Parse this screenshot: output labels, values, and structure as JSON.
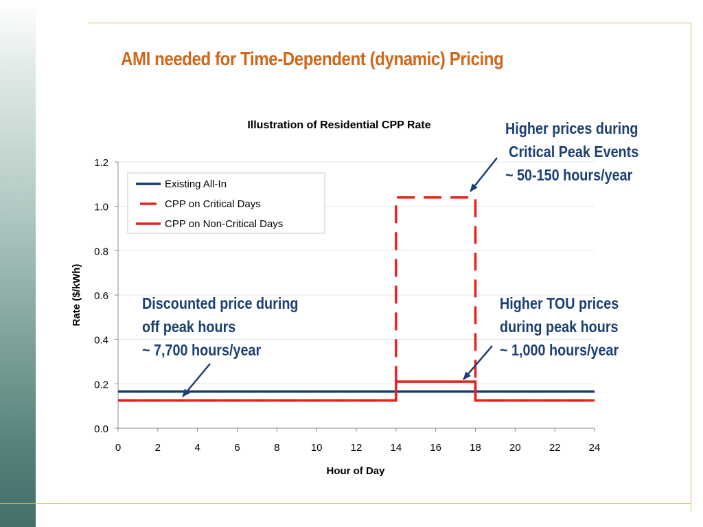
{
  "slide": {
    "title": "AMI needed for Time-Dependent (dynamic) Pricing"
  },
  "annotations": {
    "critical_peak": [
      "Higher prices during",
      "Critical Peak Events",
      "~ 50-150 hours/year"
    ],
    "discounted_off_peak": [
      "Discounted price during",
      "off peak hours",
      "~ 7,700 hours/year"
    ],
    "higher_tou": [
      "Higher TOU prices",
      "during peak hours",
      "~ 1,000 hours/year"
    ]
  },
  "chart_data": {
    "type": "line",
    "title": "Illustration of Residential CPP Rate",
    "xlabel": "Hour of Day",
    "ylabel": "Rate ($/kWh)",
    "xlim": [
      0,
      24
    ],
    "ylim": [
      0,
      1.2
    ],
    "x_ticks": [
      0,
      2,
      4,
      6,
      8,
      10,
      12,
      14,
      16,
      18,
      20,
      22,
      24
    ],
    "y_ticks": [
      "0.0",
      "0.2",
      "0.4",
      "0.6",
      "0.8",
      "1.0",
      "1.2"
    ],
    "grid": "horizontal",
    "legend_position": "top-left",
    "series": [
      {
        "name": "Existing All-In",
        "color": "#173a64",
        "style": "solid",
        "points": [
          [
            0,
            0.165
          ],
          [
            24,
            0.165
          ]
        ]
      },
      {
        "name": "CPP on Critical Days",
        "color": "#e8211d",
        "style": "dashed",
        "points": [
          [
            0,
            0.125
          ],
          [
            14,
            0.125
          ],
          [
            14,
            1.04
          ],
          [
            18,
            1.04
          ],
          [
            18,
            0.125
          ],
          [
            24,
            0.125
          ]
        ]
      },
      {
        "name": "CPP on Non-Critical Days",
        "color": "#e8211d",
        "style": "solid",
        "points": [
          [
            0,
            0.125
          ],
          [
            14,
            0.125
          ],
          [
            14,
            0.21
          ],
          [
            18,
            0.21
          ],
          [
            18,
            0.125
          ],
          [
            24,
            0.125
          ]
        ]
      }
    ]
  },
  "colors": {
    "title": "#d0661a",
    "annotation": "#1c3f73",
    "arrow": "#1c3f73"
  }
}
